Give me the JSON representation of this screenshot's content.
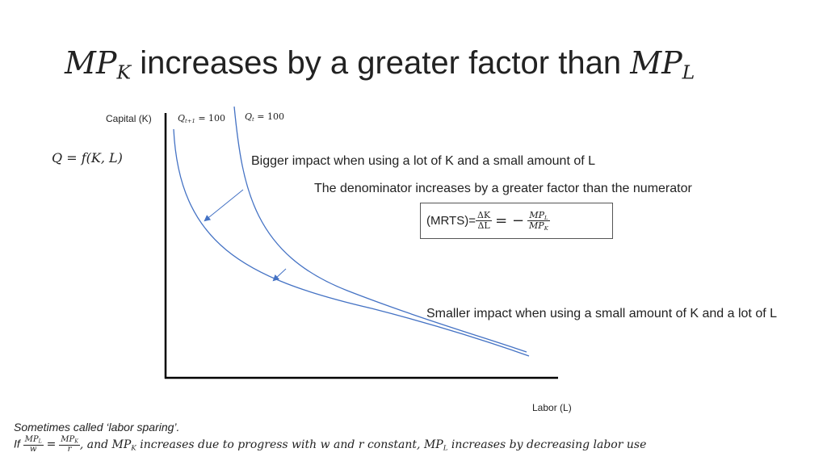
{
  "title": {
    "prefix": "MP",
    "prefix_sub": "K",
    "text": " increases by a greater factor than ",
    "suffix": "MP",
    "suffix_sub": "L"
  },
  "axes": {
    "y_label": "Capital (K)",
    "x_label": "Labor (L)"
  },
  "isoquants": {
    "new": {
      "var": "Q",
      "sub": "t+1",
      "value": "= 100"
    },
    "old": {
      "var": "Q",
      "sub": "t",
      "value": "= 100"
    }
  },
  "production_function": "Q = f(K, L)",
  "notes": {
    "big_impact": "Bigger impact when using a lot of K and a small amount of L",
    "denominator": "The denominator increases by a greater factor than the numerator",
    "small_impact": "Smaller impact when using a small amount of K and a lot of L"
  },
  "mrts": {
    "label": "(MRTS)=",
    "frac1_num": "ΔK",
    "frac1_den": "ΔL",
    "equals": "= −",
    "frac2_num_main": "MP",
    "frac2_num_sub": "L",
    "frac2_den_main": "MP",
    "frac2_den_sub": "K"
  },
  "footnote": {
    "line1": "Sometimes called ‘labor sparing’.",
    "if_text": "If",
    "f1_num_main": "MP",
    "f1_num_sub": "L",
    "f1_den": "w",
    "eq": "=",
    "f2_num_main": "MP",
    "f2_num_sub": "K",
    "f2_den": "r",
    "mid_a": ", and MP",
    "mid_a_sub": "K",
    "mid_b": " increases due to progress with w and r constant, MP",
    "mid_b_sub": "L",
    "end": " increases by decreasing labor use"
  },
  "colors": {
    "curve": "#4472c4",
    "arrow": "#4472c4",
    "axis": "#000000"
  }
}
